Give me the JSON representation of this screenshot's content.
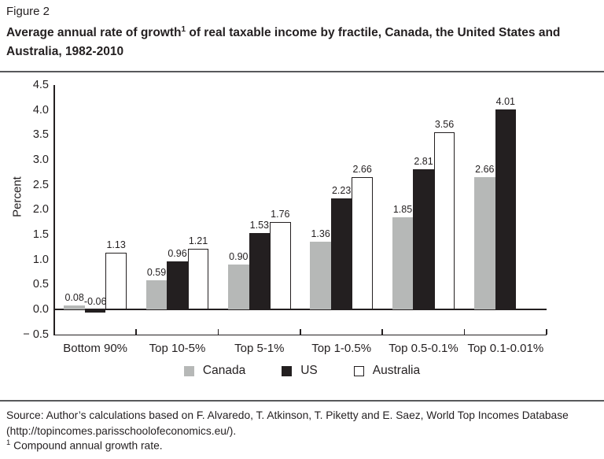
{
  "page": {
    "figure_label": "Figure 2",
    "title": {
      "pre": "Average annual rate of growth",
      "sup": "1",
      "post": " of real taxable income by fractile, Canada, the United States and Australia, 1982-2010"
    },
    "source_line1": "Source: Author’s calculations based on F. Alvaredo, T. Atkinson, T. Piketty and E. Saez, World Top Incomes Database",
    "source_line2": "(http://topincomes.parisschoolofeconomics.eu/).",
    "footnote": {
      "sup": "1",
      "text": " Compound annual growth rate."
    }
  },
  "chart_data": {
    "type": "bar",
    "title": "Average annual rate of growth of real taxable income by fractile, Canada, the United States and Australia, 1982-2010",
    "xlabel": "",
    "ylabel": "Percent",
    "ylim": [
      -0.5,
      4.5
    ],
    "ytick_step": 0.5,
    "ytick_labels": [
      "4.5",
      "4.0",
      "3.5",
      "3.0",
      "2.5",
      "2.0",
      "1.5",
      "1.0",
      "0.5",
      "0.0",
      "− 0.5"
    ],
    "categories": [
      "Bottom 90%",
      "Top 10-5%",
      "Top 5-1%",
      "Top 1-0.5%",
      "Top 0.5-0.1%",
      "Top 0.1-0.01%"
    ],
    "series": [
      {
        "name": "Canada",
        "color": "#b6b8b7",
        "border": "none",
        "values": [
          0.08,
          0.59,
          0.9,
          1.36,
          1.85,
          2.66
        ]
      },
      {
        "name": "US",
        "color": "#231f20",
        "border": "#231f20",
        "values": [
          -0.06,
          0.96,
          1.53,
          2.23,
          2.81,
          4.01
        ]
      },
      {
        "name": "Australia",
        "color": "#ffffff",
        "border": "#231f20",
        "values": [
          1.13,
          1.21,
          1.76,
          2.66,
          3.56,
          null
        ]
      }
    ],
    "value_labels": true,
    "grid": false,
    "legend_position": "bottom"
  }
}
